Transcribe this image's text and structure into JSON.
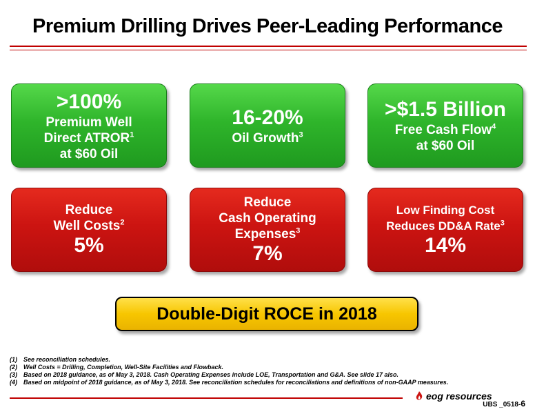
{
  "title": "Premium Drilling Drives Peer-Leading Performance",
  "cards": {
    "atror": {
      "big": ">100%",
      "line1": "Premium Well",
      "line2": "Direct ATROR",
      "sup": "1",
      "line3": "at $60 Oil"
    },
    "oil": {
      "big": "16-20%",
      "line1": "Oil Growth",
      "sup": "3"
    },
    "fcf": {
      "big": ">$1.5 Billion",
      "line1": "Free Cash Flow",
      "sup": "4",
      "line2": "at $60 Oil"
    },
    "wellcosts": {
      "line1": "Reduce",
      "line2": "Well Costs",
      "sup": "2",
      "pct": "5%"
    },
    "cashopex": {
      "line1": "Reduce",
      "line2": "Cash Operating",
      "line3": "Expenses",
      "sup": "3",
      "pct": "7%"
    },
    "dda": {
      "line1": "Low Finding Cost",
      "line2": "Reduces DD&A Rate",
      "sup": "3",
      "pct": "14%"
    }
  },
  "roce": "Double-Digit ROCE in 2018",
  "footnotes": [
    {
      "num": "(1)",
      "text": "See reconciliation schedules."
    },
    {
      "num": "(2)",
      "text": "Well Costs = Drilling, Completion, Well-Site Facilities and Flowback."
    },
    {
      "num": "(3)",
      "text": "Based on 2018 guidance, as of May 3, 2018. Cash Operating Expenses include LOE, Transportation and G&A.  See slide 17 also."
    },
    {
      "num": "(4)",
      "text": "Based on midpoint of 2018 guidance, as of May 3, 2018.  See reconciliation schedules for reconciliations and definitions of non-GAAP measures."
    }
  ],
  "logo": "eog resources",
  "slide_code": "UBS _0518-",
  "page_number": "6",
  "colors": {
    "green": "#2fb52b",
    "red": "#cc1411",
    "yellow": "#f7c600",
    "rule": "#c00000"
  }
}
